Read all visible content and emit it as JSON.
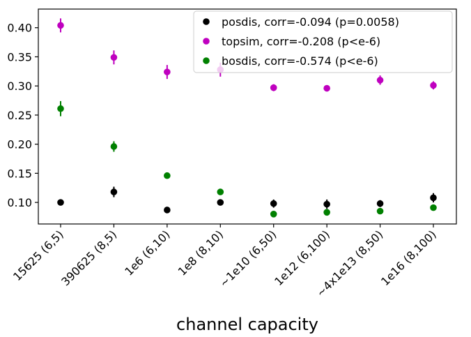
{
  "chart_data": {
    "type": "scatter",
    "xlabel": "channel capacity",
    "ylabel": "",
    "title": "",
    "categories": [
      "15625 (6,5)",
      "390625 (8,5)",
      "1e6 (6,10)",
      "1e8 (8,10)",
      "~1e10 (6,50)",
      "1e12 (6,100)",
      "~4x1e13 (8,50)",
      "1e16 (8,100)"
    ],
    "ylim": [
      0.063,
      0.432
    ],
    "yticks": [
      "0.10",
      "0.15",
      "0.20",
      "0.25",
      "0.30",
      "0.35",
      "0.40"
    ],
    "legend_position": "top-right",
    "grid": false,
    "series": [
      {
        "name": "posdis, corr=-0.094 (p=0.0058)",
        "color": "#000000",
        "values": [
          0.1,
          0.118,
          0.087,
          0.1,
          0.098,
          0.097,
          0.098,
          0.108
        ],
        "errors": [
          0.002,
          0.009,
          0.002,
          0.002,
          0.007,
          0.008,
          0.006,
          0.008
        ]
      },
      {
        "name": "topsim, corr=-0.208 (p<e-6)",
        "color": "#bf00bf",
        "values": [
          0.404,
          0.349,
          0.324,
          0.328,
          0.297,
          0.296,
          0.31,
          0.301
        ],
        "errors": [
          0.012,
          0.012,
          0.012,
          0.012,
          0.006,
          0.004,
          0.008,
          0.007
        ]
      },
      {
        "name": "bosdis, corr=-0.574 (p<e-6)",
        "color": "#008000",
        "values": [
          0.261,
          0.196,
          0.146,
          0.118,
          0.08,
          0.083,
          0.085,
          0.091
        ],
        "errors": [
          0.013,
          0.009,
          0.002,
          0.002,
          0.002,
          0.003,
          0.002,
          0.002
        ]
      }
    ]
  }
}
